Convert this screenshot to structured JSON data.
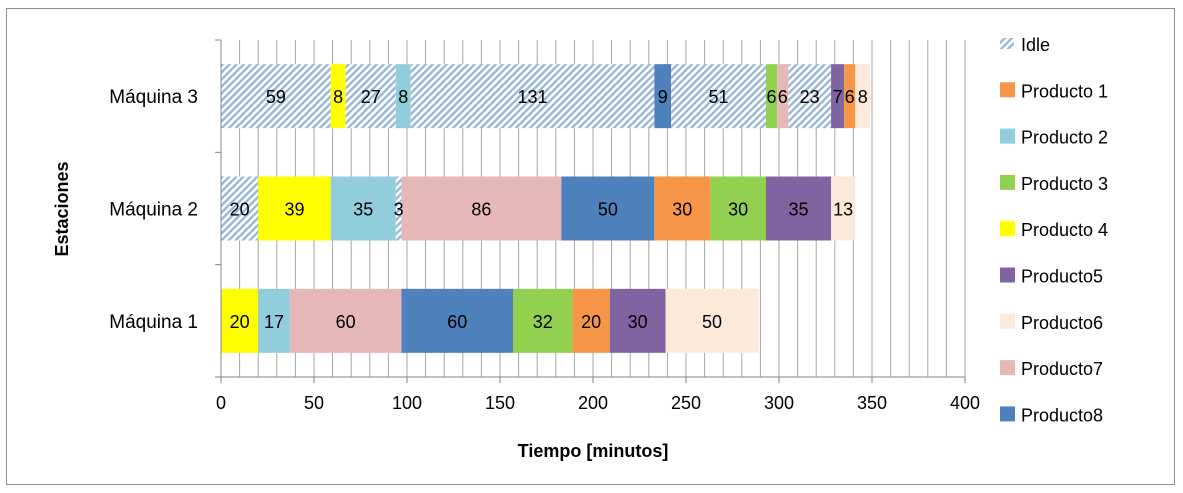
{
  "chart_data": {
    "type": "bar",
    "orientation": "horizontal",
    "stacked": true,
    "xlabel": "Tiempo [minutos]",
    "ylabel": "Estaciones",
    "xlim": [
      0,
      400
    ],
    "xticks": [
      0,
      50,
      100,
      150,
      200,
      250,
      300,
      350,
      400
    ],
    "grid": "vertical",
    "legend_position": "right",
    "legend": [
      {
        "name": "Idle",
        "color": "#9ab8d8",
        "pattern": "hatch"
      },
      {
        "name": "Producto 1",
        "color": "#f79646"
      },
      {
        "name": "Producto 2",
        "color": "#92cddc"
      },
      {
        "name": "Producto 3",
        "color": "#92d050"
      },
      {
        "name": "Producto 4",
        "color": "#ffff00"
      },
      {
        "name": "Producto5",
        "color": "#8064a2"
      },
      {
        "name": "Producto6",
        "color": "#fde9d9"
      },
      {
        "name": "Producto7",
        "color": "#e6b9b8"
      },
      {
        "name": "Producto8",
        "color": "#4f81bd"
      }
    ],
    "categories": [
      "Máquina 1",
      "Máquina 2",
      "Máquina 3"
    ],
    "rows": [
      {
        "category": "Máquina 1",
        "segments": [
          {
            "series": "Producto 4",
            "value": 20,
            "label": "20"
          },
          {
            "series": "Producto 2",
            "value": 17,
            "label": "17"
          },
          {
            "series": "Producto7",
            "value": 60,
            "label": "60"
          },
          {
            "series": "Producto8",
            "value": 60,
            "label": "60"
          },
          {
            "series": "Producto 3",
            "value": 32,
            "label": "32"
          },
          {
            "series": "Producto 1",
            "value": 20,
            "label": "20"
          },
          {
            "series": "Producto5",
            "value": 30,
            "label": "30"
          },
          {
            "series": "Producto6",
            "value": 50,
            "label": "50"
          }
        ]
      },
      {
        "category": "Máquina 2",
        "segments": [
          {
            "series": "Idle",
            "value": 20,
            "label": "20"
          },
          {
            "series": "Producto 4",
            "value": 39,
            "label": "39"
          },
          {
            "series": "Producto 2",
            "value": 35,
            "label": "35"
          },
          {
            "series": "Idle",
            "value": 3,
            "label": "3"
          },
          {
            "series": "Producto7",
            "value": 86,
            "label": "86"
          },
          {
            "series": "Producto8",
            "value": 50,
            "label": "50"
          },
          {
            "series": "Producto 1",
            "value": 30,
            "label": "30"
          },
          {
            "series": "Producto 3",
            "value": 30,
            "label": "30"
          },
          {
            "series": "Producto5",
            "value": 35,
            "label": "35"
          },
          {
            "series": "Producto6",
            "value": 13,
            "label": "13"
          }
        ]
      },
      {
        "category": "Máquina 3",
        "segments": [
          {
            "series": "Idle",
            "value": 59,
            "label": "59"
          },
          {
            "series": "Producto 4",
            "value": 8,
            "label": "8"
          },
          {
            "series": "Idle",
            "value": 27,
            "label": "27"
          },
          {
            "series": "Producto 2",
            "value": 8,
            "label": "8"
          },
          {
            "series": "Idle",
            "value": 131,
            "label": "131"
          },
          {
            "series": "Producto8",
            "value": 9,
            "label": "9"
          },
          {
            "series": "Idle",
            "value": 51,
            "label": "51"
          },
          {
            "series": "Producto 3",
            "value": 6,
            "label": "6"
          },
          {
            "series": "Producto7",
            "value": 6,
            "label": "6"
          },
          {
            "series": "Idle",
            "value": 23,
            "label": "23"
          },
          {
            "series": "Producto5",
            "value": 7,
            "label": "7"
          },
          {
            "series": "Producto 1",
            "value": 6,
            "label": "6"
          },
          {
            "series": "Producto6",
            "value": 8,
            "label": "8"
          }
        ]
      }
    ]
  }
}
